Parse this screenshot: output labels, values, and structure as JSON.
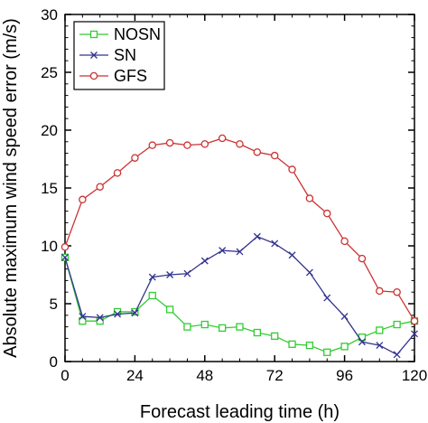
{
  "chart_data": {
    "type": "line",
    "xlabel": "Forecast leading time (h)",
    "ylabel": "Absolute maximum wind speed error (m/s)",
    "xlim": [
      0,
      120
    ],
    "ylim": [
      0,
      30
    ],
    "xticks": [
      0,
      24,
      48,
      72,
      96,
      120
    ],
    "yticks": [
      0,
      5,
      10,
      15,
      20,
      25,
      30
    ],
    "grid": false,
    "legend_position": "top-left",
    "x": [
      0,
      6,
      12,
      18,
      24,
      30,
      36,
      42,
      48,
      54,
      60,
      66,
      72,
      78,
      84,
      90,
      96,
      102,
      108,
      114,
      120
    ],
    "series": [
      {
        "name": "NOSN",
        "color": "#33cc33",
        "marker": "square",
        "values": [
          9.0,
          3.5,
          3.5,
          4.3,
          4.3,
          5.7,
          4.5,
          3.0,
          3.2,
          2.9,
          3.0,
          2.5,
          2.2,
          1.5,
          1.4,
          0.8,
          1.3,
          2.1,
          2.7,
          3.2,
          3.5
        ]
      },
      {
        "name": "SN",
        "color": "#33338f",
        "marker": "x",
        "values": [
          9.0,
          3.9,
          3.8,
          4.1,
          4.2,
          7.3,
          7.5,
          7.6,
          8.7,
          9.6,
          9.5,
          10.8,
          10.2,
          9.2,
          7.7,
          5.5,
          3.9,
          1.7,
          1.4,
          0.6,
          2.4
        ]
      },
      {
        "name": "GFS",
        "color": "#cc3333",
        "marker": "circle",
        "values": [
          9.9,
          14.0,
          15.1,
          16.3,
          17.6,
          18.7,
          18.9,
          18.7,
          18.8,
          19.3,
          18.8,
          18.1,
          17.8,
          16.6,
          14.1,
          12.8,
          10.4,
          8.9,
          6.1,
          6.0,
          3.5
        ]
      }
    ]
  }
}
